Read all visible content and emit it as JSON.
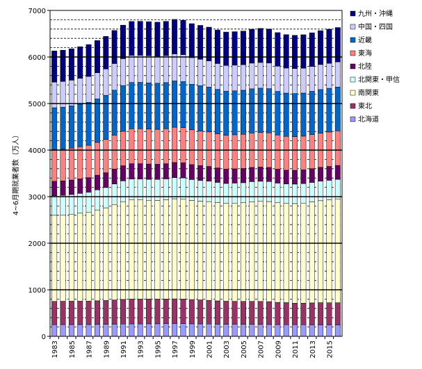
{
  "chart_data": {
    "type": "bar",
    "stacked": true,
    "title": "",
    "xlabel": "",
    "ylabel": "4~6月期就業者数（万人）",
    "ylim": [
      0,
      7000
    ],
    "yticks": [
      0,
      1000,
      2000,
      3000,
      4000,
      5000,
      6000,
      7000
    ],
    "grid": "dashed horizontal lines every 200, solid lines every 1000",
    "legend_position": "right",
    "categories": [
      "1983",
      "1984",
      "1985",
      "1986",
      "1987",
      "1988",
      "1989",
      "1990",
      "1991",
      "1992",
      "1993",
      "1994",
      "1995",
      "1996",
      "1997",
      "1998",
      "1999",
      "2000",
      "2001",
      "2002",
      "2003",
      "2004",
      "2005",
      "2006",
      "2007",
      "2008",
      "2009",
      "2010",
      "2011",
      "2012",
      "2013",
      "2014",
      "2015",
      "2016"
    ],
    "category_labels": [
      "1983",
      "",
      "1985",
      "",
      "1987",
      "",
      "1989",
      "",
      "1991",
      "",
      "1993",
      "",
      "1995",
      "",
      "1997",
      "",
      "1999",
      "",
      "2001",
      "",
      "2003",
      "",
      "2005",
      "",
      "2007",
      "",
      "2009",
      "",
      "2011",
      "",
      "2013",
      "",
      "2015",
      ""
    ],
    "series": [
      {
        "name": "北海道",
        "color": "#9999ff",
        "values": [
          250,
          252,
          252,
          253,
          254,
          256,
          258,
          262,
          265,
          268,
          268,
          270,
          270,
          272,
          273,
          273,
          270,
          268,
          266,
          262,
          259,
          258,
          257,
          257,
          256,
          255,
          252,
          250,
          250,
          250,
          248,
          248,
          247,
          247
        ]
      },
      {
        "name": "東北",
        "color": "#993366",
        "values": [
          500,
          501,
          502,
          502,
          504,
          508,
          512,
          520,
          528,
          532,
          532,
          532,
          530,
          530,
          532,
          528,
          520,
          515,
          508,
          500,
          495,
          494,
          493,
          494,
          493,
          490,
          478,
          474,
          462,
          462,
          470,
          475,
          475,
          475
        ]
      },
      {
        "name": "南関東",
        "color": "#ffffcc",
        "values": [
          1850,
          1855,
          1870,
          1890,
          1910,
          1950,
          1990,
          2050,
          2100,
          2130,
          2130,
          2120,
          2120,
          2130,
          2150,
          2150,
          2130,
          2120,
          2120,
          2110,
          2100,
          2110,
          2120,
          2140,
          2150,
          2150,
          2140,
          2130,
          2140,
          2150,
          2170,
          2190,
          2210,
          2230
        ]
      },
      {
        "name": "北関東・甲信",
        "color": "#ccffff",
        "values": [
          420,
          420,
          422,
          425,
          428,
          432,
          436,
          440,
          446,
          450,
          450,
          450,
          450,
          450,
          452,
          452,
          448,
          445,
          440,
          435,
          430,
          430,
          430,
          432,
          432,
          430,
          422,
          418,
          418,
          418,
          418,
          420,
          420,
          420
        ]
      },
      {
        "name": "北陸",
        "color": "#660066",
        "values": [
          310,
          310,
          311,
          312,
          313,
          315,
          318,
          322,
          325,
          328,
          328,
          328,
          326,
          326,
          327,
          325,
          320,
          318,
          315,
          310,
          307,
          306,
          305,
          305,
          304,
          302,
          298,
          296,
          295,
          295,
          296,
          297,
          297,
          298
        ]
      },
      {
        "name": "東海",
        "color": "#ff8080",
        "values": [
          680,
          682,
          685,
          690,
          695,
          705,
          715,
          728,
          740,
          750,
          752,
          752,
          750,
          752,
          758,
          755,
          748,
          745,
          742,
          735,
          730,
          732,
          735,
          740,
          745,
          745,
          735,
          728,
          725,
          725,
          730,
          735,
          740,
          745
        ]
      },
      {
        "name": "近畿",
        "color": "#0066cc",
        "values": [
          900,
          903,
          908,
          915,
          922,
          935,
          948,
          965,
          982,
          995,
          995,
          993,
          990,
          990,
          993,
          988,
          978,
          972,
          962,
          952,
          945,
          944,
          945,
          948,
          950,
          948,
          935,
          928,
          925,
          925,
          930,
          935,
          938,
          940
        ]
      },
      {
        "name": "中国・四国",
        "color": "#ccccff",
        "values": [
          550,
          551,
          552,
          554,
          556,
          560,
          565,
          572,
          578,
          582,
          582,
          582,
          580,
          580,
          582,
          578,
          572,
          568,
          563,
          556,
          552,
          550,
          550,
          552,
          552,
          550,
          542,
          538,
          535,
          535,
          536,
          538,
          538,
          540
        ]
      },
      {
        "name": "九州・沖縄",
        "color": "#000080",
        "values": [
          670,
          672,
          675,
          680,
          685,
          692,
          700,
          710,
          720,
          728,
          730,
          732,
          732,
          735,
          740,
          738,
          730,
          728,
          725,
          720,
          718,
          720,
          722,
          728,
          732,
          730,
          722,
          718,
          715,
          718,
          722,
          728,
          732,
          738
        ]
      }
    ]
  }
}
